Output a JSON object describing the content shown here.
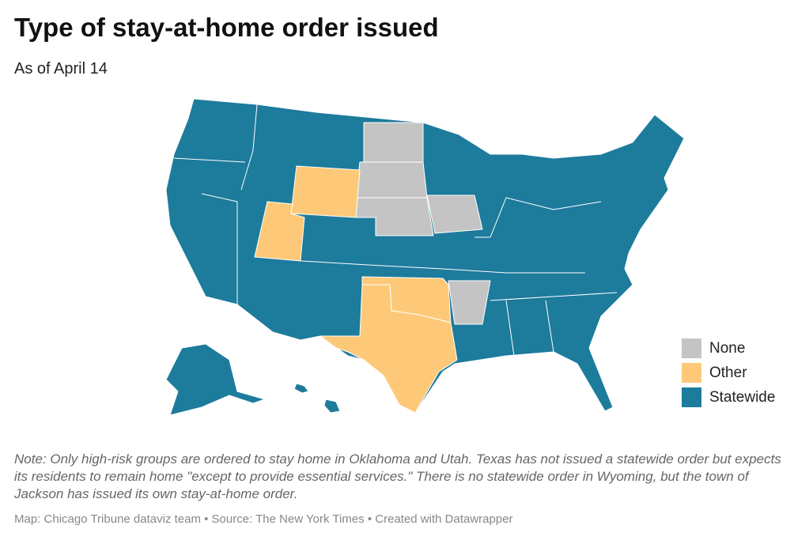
{
  "header": {
    "title": "Type of stay-at-home order issued",
    "subtitle": "As of April 14"
  },
  "legend": {
    "items": [
      {
        "label": "None",
        "color": "#c4c4c4"
      },
      {
        "label": "Other",
        "color": "#fdc978"
      },
      {
        "label": "Statewide",
        "color": "#1d7b9c"
      }
    ]
  },
  "footer": {
    "note": "Note: Only high-risk groups are ordered to stay home in Oklahoma and Utah. Texas has not issued a statewide order but expects its residents to remain home \"except to provide essential services.\" There is no statewide order in Wyoming, but the town of Jackson has issued its own stay-at-home order.",
    "credit": "Map: Chicago Tribune dataviz team • Source: The New York Times • Created with Datawrapper"
  }
}
